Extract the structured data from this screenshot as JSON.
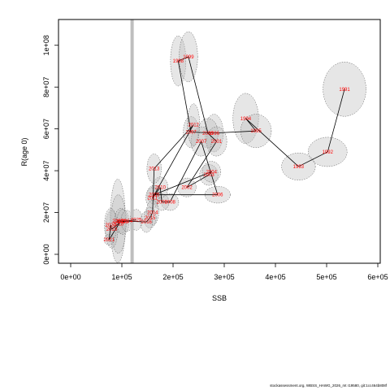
{
  "footer_text": "stockassessment.org, WBSS_HAWG_2026_mt r19580, git:1cc464b808f",
  "colors": {
    "label": "#ff0000",
    "ellipse_fill": "#bebebe",
    "ellipse_stroke": "#555555",
    "vline": "#bebebe"
  },
  "chart_data": {
    "type": "scatter",
    "title": "",
    "xlabel": "SSB",
    "ylabel": "R(age 0)",
    "xlim": [
      0,
      600000
    ],
    "ylim": [
      0,
      110000000
    ],
    "x_ticks": [
      0,
      100000,
      200000,
      300000,
      400000,
      500000,
      600000
    ],
    "x_tick_labels": [
      "0e+00",
      "1e+05",
      "2e+05",
      "3e+05",
      "4e+05",
      "5e+05",
      "6e+05"
    ],
    "y_ticks": [
      0,
      20000000,
      40000000,
      60000000,
      80000000,
      100000000
    ],
    "y_tick_labels": [
      "0e+00",
      "2e+07",
      "4e+07",
      "6e+07",
      "8e+07",
      "1e+08"
    ],
    "reference_line_x": 120000,
    "points": [
      {
        "year": "1991",
        "ssb": 535000,
        "rec": 79000000,
        "sx": 42000,
        "sy": 13000000
      },
      {
        "year": "1992",
        "ssb": 502000,
        "rec": 49000000,
        "sx": 38000,
        "sy": 7000000
      },
      {
        "year": "1993",
        "ssb": 445000,
        "rec": 42000000,
        "sx": 33000,
        "sy": 6500000
      },
      {
        "year": "1994",
        "ssb": 342000,
        "rec": 65000000,
        "sx": 25000,
        "sy": 12000000
      },
      {
        "year": "1995",
        "ssb": 362000,
        "rec": 59000000,
        "sx": 30000,
        "sy": 8000000
      },
      {
        "year": "1996",
        "ssb": 280000,
        "rec": 58000000,
        "sx": 18000,
        "sy": 9000000
      },
      {
        "year": "1997",
        "ssb": 235000,
        "rec": 58500000,
        "sx": 15000,
        "sy": 7500000
      },
      {
        "year": "1998",
        "ssb": 210000,
        "rec": 92500000,
        "sx": 15000,
        "sy": 12000000
      },
      {
        "year": "1999",
        "ssb": 230000,
        "rec": 94500000,
        "sx": 18000,
        "sy": 12000000
      },
      {
        "year": "2000",
        "ssb": 268000,
        "rec": 58000000,
        "sx": 20000,
        "sy": 7000000
      },
      {
        "year": "2001",
        "ssb": 285000,
        "rec": 54000000,
        "sx": 20000,
        "sy": 7000000
      },
      {
        "year": "2002",
        "ssb": 227000,
        "rec": 32000000,
        "sx": 18000,
        "sy": 4500000
      },
      {
        "year": "2003",
        "ssb": 270000,
        "rec": 38000000,
        "sx": 18000,
        "sy": 5000000
      },
      {
        "year": "2004",
        "ssb": 275000,
        "rec": 39500000,
        "sx": 18000,
        "sy": 5000000
      },
      {
        "year": "2005",
        "ssb": 163000,
        "rec": 28500000,
        "sx": 14000,
        "sy": 4500000
      },
      {
        "year": "2006",
        "ssb": 287000,
        "rec": 28500000,
        "sx": 25000,
        "sy": 4000000
      },
      {
        "year": "2007",
        "ssb": 255000,
        "rec": 54000000,
        "sx": 20000,
        "sy": 7000000
      },
      {
        "year": "2008",
        "ssb": 194000,
        "rec": 25000000,
        "sx": 17000,
        "sy": 4000000
      },
      {
        "year": "2009",
        "ssb": 178000,
        "rec": 25000000,
        "sx": 14000,
        "sy": 4000000
      },
      {
        "year": "2010",
        "ssb": 175000,
        "rec": 32000000,
        "sx": 15000,
        "sy": 5000000
      },
      {
        "year": "2011",
        "ssb": 160000,
        "rec": 27000000,
        "sx": 13000,
        "sy": 5000000
      },
      {
        "year": "2012",
        "ssb": 240000,
        "rec": 62000000,
        "sx": 12000,
        "sy": 10000000
      },
      {
        "year": "2013",
        "ssb": 163000,
        "rec": 41000000,
        "sx": 14000,
        "sy": 7000000
      },
      {
        "year": "2014",
        "ssb": 160000,
        "rec": 20000000,
        "sx": 12000,
        "sy": 6000000
      },
      {
        "year": "2015",
        "ssb": 155000,
        "rec": 17500000,
        "sx": 12000,
        "sy": 5000000
      },
      {
        "year": "2016",
        "ssb": 148000,
        "rec": 15500000,
        "sx": 12000,
        "sy": 5000000
      },
      {
        "year": "2017",
        "ssb": 92000,
        "rec": 16000000,
        "sx": 15000,
        "sy": 20000000
      },
      {
        "year": "2018",
        "ssb": 93000,
        "rec": 14500000,
        "sx": 15000,
        "sy": 14000000
      },
      {
        "year": "2019",
        "ssb": 80000,
        "rec": 12000000,
        "sx": 12000,
        "sy": 9000000
      },
      {
        "year": "2020",
        "ssb": 78000,
        "rec": 14000000,
        "sx": 12000,
        "sy": 8000000
      },
      {
        "year": "2021",
        "ssb": 75000,
        "rec": 7000000,
        "sx": 10000,
        "sy": 2500000
      },
      {
        "year": "2022",
        "ssb": 98000,
        "rec": 16000000,
        "sx": 12000,
        "sy": 6000000
      },
      {
        "year": "2023",
        "ssb": 102000,
        "rec": 15500000,
        "sx": 12000,
        "sy": 6000000
      },
      {
        "year": "2024",
        "ssb": 110000,
        "rec": 16000000,
        "sx": 12000,
        "sy": 5000000
      },
      {
        "year": "2025",
        "ssb": 128000,
        "rec": 16500000,
        "sx": 12000,
        "sy": 5000000
      }
    ],
    "path": [
      [
        "1991",
        "1992"
      ],
      [
        "1992",
        "1993"
      ],
      [
        "1993",
        "1994"
      ],
      [
        "1994",
        "1995"
      ],
      [
        "1995",
        "1996"
      ],
      [
        "1996",
        "1997"
      ],
      [
        "1997",
        "1998"
      ],
      [
        "1998",
        "1999"
      ],
      [
        "1999",
        "2000"
      ],
      [
        "2000",
        "2001"
      ],
      [
        "2001",
        "2002"
      ],
      [
        "2002",
        "2003"
      ],
      [
        "2003",
        "2004"
      ],
      [
        "2004",
        "2005"
      ],
      [
        "2005",
        "2006"
      ],
      [
        "2006",
        "2007"
      ],
      [
        "2007",
        "2008"
      ],
      [
        "2008",
        "2009"
      ],
      [
        "2009",
        "2010"
      ],
      [
        "2010",
        "2011"
      ],
      [
        "2011",
        "2012"
      ],
      [
        "2012",
        "2013"
      ],
      [
        "2013",
        "2014"
      ],
      [
        "2014",
        "2015"
      ],
      [
        "2015",
        "2016"
      ],
      [
        "2016",
        "2017"
      ],
      [
        "2017",
        "2018"
      ],
      [
        "2018",
        "2019"
      ],
      [
        "2019",
        "2020"
      ],
      [
        "2020",
        "2021"
      ],
      [
        "2021",
        "2022"
      ],
      [
        "2022",
        "2023"
      ],
      [
        "2023",
        "2024"
      ],
      [
        "2024",
        "2025"
      ]
    ]
  }
}
